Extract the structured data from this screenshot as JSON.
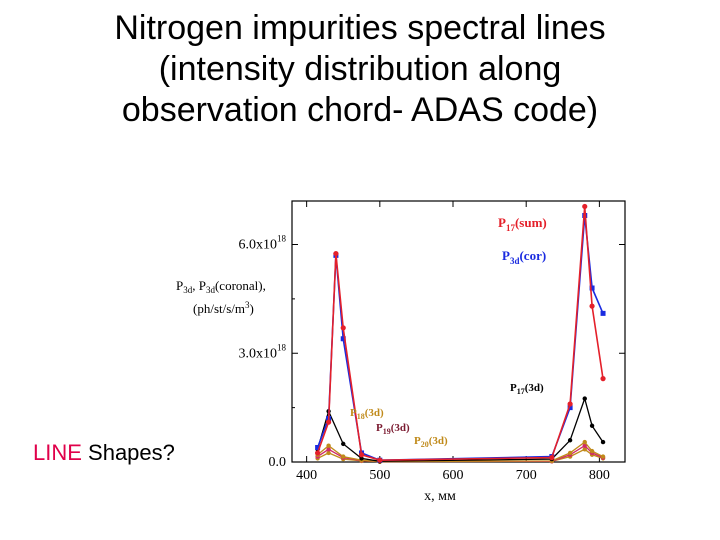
{
  "slide": {
    "title_lines": [
      "Nitrogen impurities spectral lines",
      "(intensity distribution along",
      "observation chord- ADAS code)"
    ],
    "side_note_highlight": "LINE",
    "side_note_rest": " Shapes?"
  },
  "chart_data": {
    "type": "line",
    "title": "",
    "xlabel": "x, мм",
    "ylabel_line1": "P3d, P3d(coronal)",
    "ylabel_line2": "(ph/st/s/m3)",
    "xlim": [
      380,
      835
    ],
    "ylim": [
      0,
      7.2e+18
    ],
    "x_ticks": [
      "400",
      "500",
      "600",
      "700",
      "800"
    ],
    "x_tick_values": [
      400,
      500,
      600,
      700,
      800
    ],
    "y_ticks": [
      {
        "value": 0,
        "base": "0.0",
        "exp": ""
      },
      {
        "value": 3e+18,
        "base": "3.0x10",
        "exp": "18"
      },
      {
        "value": 6e+18,
        "base": "6.0x10",
        "exp": "18"
      }
    ],
    "colors": {
      "sum": "#e4202a",
      "cor": "#1a2be0",
      "p17": "#000000",
      "p18": "#c08a1a",
      "p19": "#d02a6a",
      "p20": "#c08a1a"
    },
    "series": [
      {
        "key": "sum",
        "x": [
          415,
          430,
          440,
          450,
          475,
          500,
          735,
          760,
          780,
          790,
          805
        ],
        "y": [
          2.5e+17,
          1.1e+18,
          5.75e+18,
          3.7e+18,
          2e+17,
          5e+16,
          1.2e+17,
          1.6e+18,
          7.05e+18,
          4.3e+18,
          2.3e+18
        ],
        "label_main": "P",
        "label_sub": "17",
        "label_tail": "(sum)"
      },
      {
        "key": "cor",
        "x": [
          415,
          430,
          440,
          450,
          475,
          500,
          735,
          760,
          780,
          790,
          805
        ],
        "y": [
          4e+17,
          1.2e+18,
          5.7e+18,
          3.4e+18,
          2.5e+17,
          5e+16,
          1.5e+17,
          1.5e+18,
          6.8e+18,
          4.8e+18,
          4.1e+18
        ],
        "label_main": "P",
        "label_sub": "3d",
        "label_tail": "(cor)"
      },
      {
        "key": "p17",
        "x": [
          415,
          430,
          450,
          475,
          500,
          735,
          760,
          780,
          790,
          805
        ],
        "y": [
          3.5e+17,
          1.4e+18,
          5e+17,
          1e+17,
          2e+16,
          8e+16,
          6e+17,
          1.75e+18,
          1e+18,
          5.5e+17
        ],
        "label_main": "P",
        "label_sub": "17",
        "label_tail": "(3d)"
      },
      {
        "key": "p18",
        "x": [
          415,
          430,
          450,
          475,
          500,
          735,
          760,
          780,
          790,
          805
        ],
        "y": [
          2e+17,
          4.5e+17,
          1.5e+17,
          5e+16,
          1e+16,
          3e+16,
          2.5e+17,
          5.5e+17,
          3e+17,
          1.5e+17
        ],
        "label_main": "P",
        "label_sub": "18",
        "label_tail": "(3d)"
      },
      {
        "key": "p19",
        "x": [
          415,
          430,
          450,
          475,
          500,
          735,
          760,
          780,
          790,
          805
        ],
        "y": [
          1.5e+17,
          3.5e+17,
          1.2e+17,
          4e+16,
          1e+16,
          2e+16,
          2e+17,
          4.5e+17,
          2.5e+17,
          1.2e+17
        ],
        "label_main": "P",
        "label_sub": "19",
        "label_tail": "(3d)"
      },
      {
        "key": "p20",
        "x": [
          415,
          430,
          450,
          475,
          500,
          735,
          760,
          780,
          790,
          805
        ],
        "y": [
          1e+17,
          2.5e+17,
          8e+16,
          3e+16,
          1e+16,
          2e+16,
          1.5e+17,
          3.5e+17,
          2e+17,
          1e+17
        ],
        "label_main": "P",
        "label_sub": "20",
        "label_tail": "(3d)"
      }
    ]
  }
}
